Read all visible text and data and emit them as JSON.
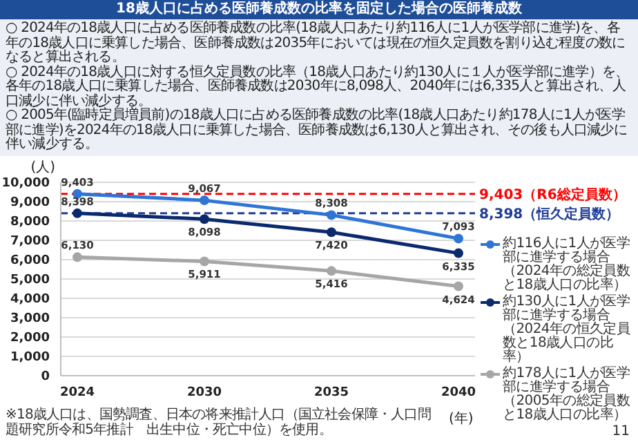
{
  "chart_data": {
    "type": "line",
    "title": "18歳人口に占める医師養成数の比率を固定した場合の医師養成数",
    "annotations": [
      "○ 2024年の18歳人口に占める医師養成数の比率(18歳人口あたり約116人に1人が医学部に進学)を、各年の18歳人口に乗算した場合、医師養成数は2035年においては現在の恒久定員数を割り込む程度の数になると算出される。",
      "○ 2024年の18歳人口に対する恒久定員数の比率（18歳人口あたり約130人に１人が医学部に進学）を、各年の18歳人口に乗算した場合、医師養成数は2030年に8,098人、2040年には6,335人と算出され、人口減少に伴い減少する。",
      "○ 2005年(臨時定員増員前)の18歳人口に占める医師養成数の比率(18歳人口あたり約178人に1人が医学部に進学)を2024年の18歳人口に乗算した場合、医師養成数は6,130人と算出され、その後も人口減少に伴い減少する。",
      "※18歳人口は、国勢調査、日本の将来推計人口（国立社会保障・人口問題研究所令和5年推計　出生中位・死亡中位）を使用。",
      "11"
    ],
    "xlabel": "(年)",
    "ylabel": "(人)",
    "categories": [
      "2024",
      "2030",
      "2035",
      "2040"
    ],
    "series": [
      {
        "name": "約116人に1人が医学部に進学する場合（2024年の総定員数と18歳人口の比率）",
        "color": "#2e75d6",
        "values": [
          9403,
          9067,
          8308,
          7093
        ],
        "value_labels": [
          "9,403",
          "9,067",
          "8,308",
          "7,093"
        ]
      },
      {
        "name": "約130人に1人が医学部に進学する場合（2024年の恒久定員数と18歳人口の比率）",
        "color": "#0b2a6e",
        "values": [
          8398,
          8098,
          7420,
          6335
        ],
        "value_labels": [
          "8,398",
          "8,098",
          "7,420",
          "6,335"
        ]
      },
      {
        "name": "約178人に1人が医学部に進学する場合（2005年の総定員数と18歳人口の比率）",
        "color": "#a6a6a6",
        "values": [
          6130,
          5911,
          5416,
          4624
        ],
        "value_labels": [
          "6,130",
          "5,911",
          "5,416",
          "4,624"
        ]
      }
    ],
    "ylim": [
      0,
      10000
    ],
    "yticks": [
      0,
      {
        "value": 1000,
        "label": "1,000"
      },
      {
        "value": 2000,
        "label": "2,000"
      },
      {
        "value": 3000,
        "label": "3,000"
      },
      {
        "value": 4000,
        "label": "4,000"
      },
      {
        "value": 5000,
        "label": "5,000"
      },
      {
        "value": 6000,
        "label": "6,000"
      },
      {
        "value": 7000,
        "label": "7,000"
      },
      {
        "value": 8000,
        "label": "8,000"
      },
      {
        "value": 9000,
        "label": "9,000"
      },
      {
        "value": 10000,
        "label": "10,000"
      }
    ],
    "ref_lines": [
      {
        "axis": "y",
        "value": 9403,
        "label": "9,403（R6総定員数）",
        "color": "#ff0000",
        "line_style": "dashed"
      },
      {
        "axis": "y",
        "value": 8398,
        "label": "8,398（恒久定員数）",
        "color": "#1f3c99",
        "line_style": "dashed"
      }
    ],
    "grid": "y",
    "legend": "right",
    "marker": "circle",
    "line_style": "solid"
  }
}
